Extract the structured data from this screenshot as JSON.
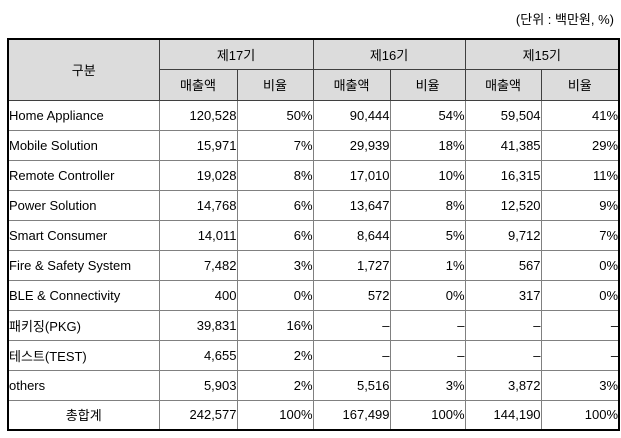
{
  "unit_label": "(단위 : 백만원, %)",
  "table": {
    "col_group_header": "구분",
    "periods": [
      "제17기",
      "제16기",
      "제15기"
    ],
    "sub_headers": [
      "매출액",
      "비율"
    ],
    "rows": [
      {
        "label": "Home Appliance",
        "values": [
          "120,528",
          "50%",
          "90,444",
          "54%",
          "59,504",
          "41%"
        ]
      },
      {
        "label": "Mobile Solution",
        "values": [
          "15,971",
          "7%",
          "29,939",
          "18%",
          "41,385",
          "29%"
        ]
      },
      {
        "label": "Remote Controller",
        "values": [
          "19,028",
          "8%",
          "17,010",
          "10%",
          "16,315",
          "11%"
        ]
      },
      {
        "label": "Power Solution",
        "values": [
          "14,768",
          "6%",
          "13,647",
          "8%",
          "12,520",
          "9%"
        ]
      },
      {
        "label": "Smart Consumer",
        "values": [
          "14,011",
          "6%",
          "8,644",
          "5%",
          "9,712",
          "7%"
        ]
      },
      {
        "label": "Fire & Safety System",
        "values": [
          "7,482",
          "3%",
          "1,727",
          "1%",
          "567",
          "0%"
        ]
      },
      {
        "label": "BLE & Connectivity",
        "values": [
          "400",
          "0%",
          "572",
          "0%",
          "317",
          "0%"
        ]
      },
      {
        "label": "패키징(PKG)",
        "values": [
          "39,831",
          "16%",
          "–",
          "–",
          "–",
          "–"
        ]
      },
      {
        "label": "테스트(TEST)",
        "values": [
          "4,655",
          "2%",
          "–",
          "–",
          "–",
          "–"
        ]
      },
      {
        "label": "others",
        "values": [
          "5,903",
          "2%",
          "5,516",
          "3%",
          "3,872",
          "3%"
        ]
      },
      {
        "label": "총합계",
        "values": [
          "242,577",
          "100%",
          "167,499",
          "100%",
          "144,190",
          "100%"
        ],
        "is_total": true
      }
    ]
  },
  "colors": {
    "header_bg": "#dcdcdc",
    "outer_border": "#000000",
    "grid_border": "#808080",
    "header_border": "#3f3f3f",
    "text": "#000000",
    "background": "#ffffff"
  }
}
